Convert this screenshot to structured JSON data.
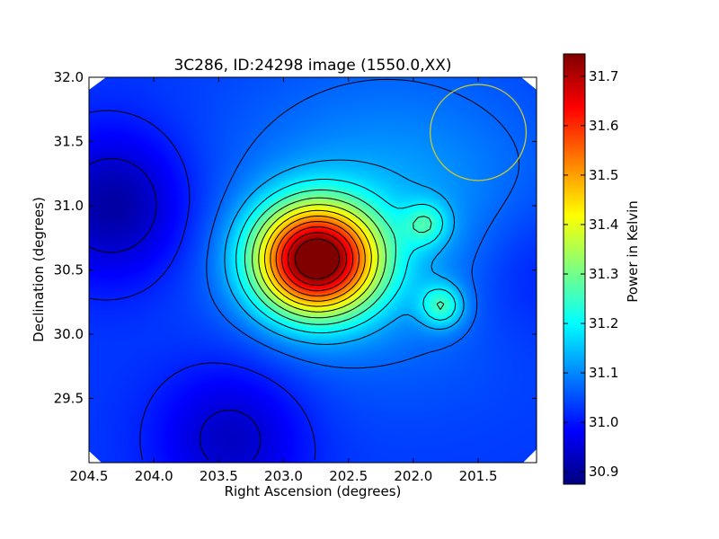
{
  "chart_data": {
    "type": "heatmap",
    "title": "3C286, ID:24298 image (1550.0,XX)",
    "xlabel": "Right Ascension (degrees)",
    "ylabel": "Declination (degrees)",
    "xlim": [
      204.5,
      201.05
    ],
    "ylim": [
      29.0,
      32.0
    ],
    "x_ticks": [
      "204.5",
      "204.0",
      "203.5",
      "203.0",
      "202.5",
      "202.0",
      "201.5"
    ],
    "y_ticks": [
      "32.0",
      "31.5",
      "31.0",
      "30.5",
      "30.0",
      "29.5"
    ],
    "colorbar": {
      "label": "Power in Kelvin",
      "range": [
        30.875,
        31.745
      ],
      "ticks": [
        "31.7",
        "31.6",
        "31.5",
        "31.4",
        "31.3",
        "31.2",
        "31.1",
        "31.0",
        "30.9"
      ],
      "colormap": "jet"
    },
    "features": [
      {
        "kind": "peak",
        "ra": 202.75,
        "dec": 30.58,
        "value": 31.745
      },
      {
        "kind": "local-max",
        "ra": 201.9,
        "dec": 30.86,
        "value": 31.16
      },
      {
        "kind": "local-max",
        "ra": 201.78,
        "dec": 30.22,
        "value": 31.2
      },
      {
        "kind": "minimum",
        "ra": 204.3,
        "dec": 31.0,
        "value": 30.9
      },
      {
        "kind": "minimum",
        "ra": 203.4,
        "dec": 29.2,
        "value": 30.93
      },
      {
        "kind": "minimum",
        "ra": 201.15,
        "dec": 30.5,
        "value": 30.98
      },
      {
        "kind": "beam-circle",
        "ra": 201.5,
        "dec": 31.57,
        "radius_deg": 0.37,
        "color": "#c8c832"
      }
    ],
    "contour_color": "#000000"
  }
}
